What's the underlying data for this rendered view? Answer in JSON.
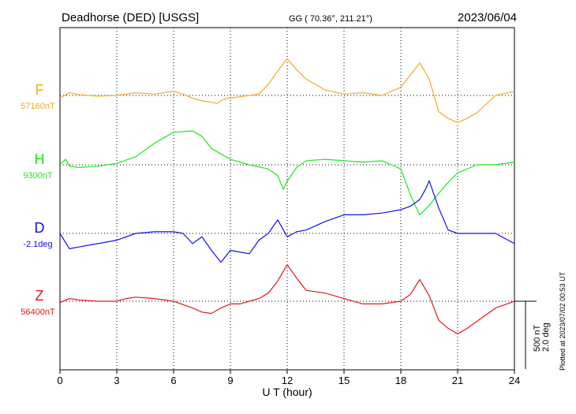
{
  "header": {
    "station": "Deadhorse (DED)  [USGS]",
    "coords": "GG ( 70.36°, 211.21°)",
    "date": "2023/06/04"
  },
  "footer": {
    "plotted": "Plotted at 2023/07/02 00:53 UT"
  },
  "chart_data": {
    "type": "line",
    "title": "",
    "xlabel": "U T (hour)",
    "ylabel": "",
    "xlim": [
      0,
      24
    ],
    "x_ticks": [
      "0",
      "3",
      "6",
      "9",
      "12",
      "15",
      "18",
      "21",
      "24"
    ],
    "grid": true,
    "scale_bar": {
      "label1": "500 nT",
      "label2": "2.0 deg"
    },
    "series": [
      {
        "name": "F",
        "baseline": "57160nT",
        "color": "#f2ab27",
        "unit": "nT",
        "x": [
          0,
          0.5,
          1,
          2,
          3,
          4,
          5,
          6,
          6.5,
          7,
          7.5,
          8,
          8.3,
          8.6,
          9,
          9.5,
          10,
          10.5,
          11,
          11.5,
          12,
          12.5,
          13,
          14,
          15,
          16,
          17,
          18,
          18.5,
          19,
          19.5,
          20,
          20.5,
          21,
          21.5,
          22,
          23,
          24
        ],
        "values": [
          -20,
          20,
          5,
          -5,
          0,
          20,
          10,
          30,
          10,
          -20,
          -40,
          -50,
          -60,
          -30,
          -20,
          -10,
          0,
          10,
          80,
          180,
          270,
          190,
          120,
          40,
          10,
          20,
          0,
          60,
          150,
          240,
          120,
          -120,
          -170,
          -200,
          -170,
          -130,
          0,
          30
        ]
      },
      {
        "name": "H",
        "baseline": "9300nT",
        "color": "#1ee61e",
        "unit": "nT",
        "x": [
          0,
          0.3,
          0.5,
          1,
          2,
          3,
          4,
          5,
          6,
          7,
          7.5,
          8,
          8.5,
          9,
          10,
          11,
          11.5,
          11.8,
          12,
          12.5,
          13,
          14,
          15,
          16,
          17,
          17.5,
          18,
          18.5,
          19,
          19.5,
          20,
          20.5,
          21,
          22,
          23,
          24
        ],
        "values": [
          0,
          40,
          -10,
          -20,
          -10,
          10,
          60,
          160,
          240,
          250,
          210,
          120,
          80,
          40,
          0,
          -30,
          -80,
          -180,
          -120,
          -20,
          30,
          40,
          30,
          20,
          30,
          0,
          -30,
          -220,
          -370,
          -300,
          -210,
          -130,
          -60,
          0,
          0,
          20
        ]
      },
      {
        "name": "D",
        "baseline": "-2.1deg",
        "color": "#1010ee",
        "unit": "deg",
        "x": [
          0,
          0.5,
          1,
          2,
          3,
          4,
          5,
          6,
          6.5,
          7,
          7.5,
          8,
          8.5,
          9,
          9.5,
          10,
          10.5,
          11,
          11.5,
          12,
          12.5,
          13,
          14,
          15,
          16,
          17,
          18,
          18.5,
          19,
          19.3,
          19.5,
          20,
          20.5,
          21,
          22,
          23,
          24
        ],
        "values": [
          0,
          -0.45,
          -0.4,
          -0.3,
          -0.2,
          0,
          0.05,
          0.05,
          0,
          -0.3,
          -0.1,
          -0.5,
          -0.85,
          -0.5,
          -0.55,
          -0.6,
          -0.2,
          0,
          0.4,
          -0.1,
          0.05,
          0.1,
          0.35,
          0.55,
          0.55,
          0.6,
          0.7,
          0.8,
          1.0,
          1.3,
          1.55,
          0.75,
          0.1,
          0,
          0,
          0,
          -0.3
        ]
      },
      {
        "name": "Z",
        "baseline": "56400nT",
        "color": "#e11919",
        "unit": "nT",
        "x": [
          0,
          0.5,
          1,
          2,
          3,
          3.5,
          4,
          5,
          6,
          7,
          7.5,
          8,
          8.5,
          9,
          9.5,
          10,
          10.5,
          11,
          11.5,
          12,
          12.5,
          13,
          14,
          15,
          16,
          17,
          18,
          18.5,
          19,
          19.5,
          20,
          20.5,
          21,
          21.5,
          22,
          23,
          24
        ],
        "values": [
          -10,
          20,
          10,
          0,
          0,
          20,
          30,
          20,
          0,
          -50,
          -80,
          -90,
          -50,
          -20,
          -20,
          0,
          20,
          60,
          150,
          270,
          170,
          80,
          60,
          20,
          -20,
          -20,
          0,
          50,
          160,
          40,
          -140,
          -200,
          -240,
          -200,
          -150,
          -50,
          0
        ]
      }
    ]
  }
}
